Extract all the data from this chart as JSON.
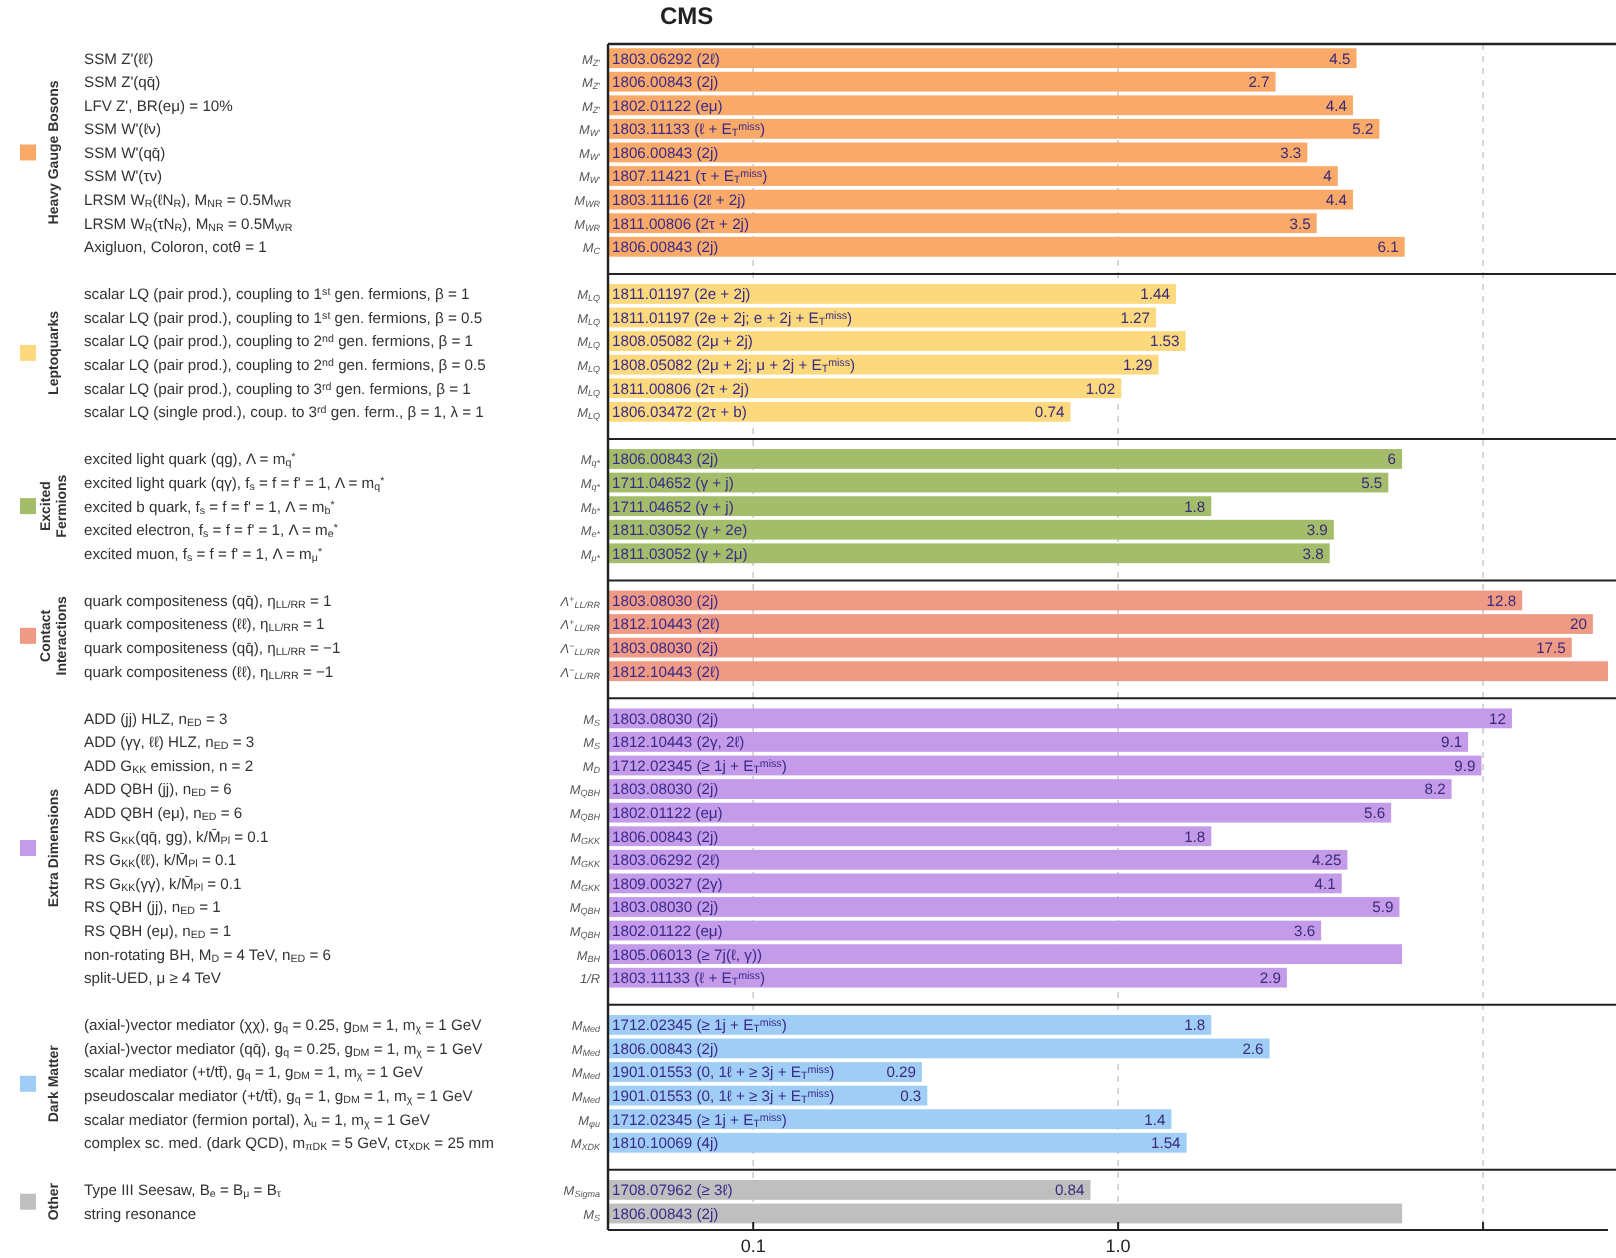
{
  "chart_data": {
    "type": "bar",
    "orientation": "horizontal",
    "title": "CMS",
    "log": "x",
    "grid": "x",
    "legend": "left",
    "xlim": [
      0.04,
      22
    ],
    "xticks": [
      0.1,
      {
        "value": 1,
        "label": "1.0"
      },
      {
        "value": 10,
        "label": null
      }
    ],
    "categories": [
      "SSM Z'(ℓℓ)",
      "SSM Z'(qq̄)",
      "LFV Z', BR(eμ) = 10%",
      "SSM W'(ℓν)",
      "SSM W'(qq̄)",
      "SSM W'(τν)",
      "LRSM W$_{R}$(ℓN$_{R}$), M$_{NR}$ = 0.5M$_{WR}$",
      "LRSM W$_{R}$(τN$_{R}$), M$_{NR}$ = 0.5M$_{WR}$",
      "Axigluon, Coloron, cotθ = 1",
      "scalar LQ (pair prod.), coupling to 1$^{st}$ gen. fermions, β = 1",
      "scalar LQ (pair prod.), coupling to 1$^{st}$ gen. fermions, β = 0.5",
      "scalar LQ (pair prod.), coupling to 2$^{nd}$ gen. fermions, β = 1",
      "scalar LQ (pair prod.), coupling to 2$^{nd}$ gen. fermions, β = 0.5",
      "scalar LQ (pair prod.), coupling to 3$^{rd}$ gen. fermions, β = 1",
      "scalar LQ (single prod.), coup. to 3$^{rd}$ gen. ferm., β = 1, λ = 1",
      "excited light quark (qg), Λ = m$_{q}$$^{*}$",
      "excited light quark (qγ), f$_{s}$ = f = f' = 1, Λ = m$_{q}$$^{*}$",
      "excited b quark, f$_{s}$ = f = f' = 1, Λ = m$_{b}$$^{*}$",
      "excited electron, f$_{s}$ = f = f' = 1, Λ = m$_{e}$$^{*}$",
      "excited muon, f$_{s}$ = f = f' = 1, Λ = m$_{μ}$$^{*}$",
      "quark compositeness (qq̄), η$_{LL/RR}$ = 1",
      "quark compositeness (ℓℓ), η$_{LL/RR}$ = 1",
      "quark compositeness (qq̄), η$_{LL/RR}$ = −1",
      "quark compositeness (ℓℓ), η$_{LL/RR}$ = −1",
      "ADD (jj) HLZ, n$_{ED}$ = 3",
      "ADD (γγ, ℓℓ) HLZ, n$_{ED}$ = 3",
      "ADD G$_{KK}$ emission, n = 2",
      "ADD QBH (jj), n$_{ED}$ = 6",
      "ADD QBH (eμ), n$_{ED}$ = 6",
      "RS G$_{KK}$(qq̄, gg), k/M̄$_{Pl}$ = 0.1",
      "RS G$_{KK}$(ℓℓ), k/M̄$_{Pl}$ = 0.1",
      "RS G$_{KK}$(γγ), k/M̄$_{Pl}$ = 0.1",
      "RS QBH (jj), n$_{ED}$ = 1",
      "RS QBH (eμ), n$_{ED}$ = 1",
      "non-rotating BH, M$_{D}$ = 4 TeV, n$_{ED}$ = 6",
      "split-UED, μ ≥ 4 TeV",
      "(axial-)vector mediator (χχ), g$_{q}$ = 0.25, g$_{DM}$ = 1, m$_{χ}$ = 1 GeV",
      "(axial-)vector mediator (qq̄), g$_{q}$ = 0.25, g$_{DM}$ = 1, m$_{χ}$ = 1 GeV",
      "scalar mediator (+t/tt̄), g$_{q}$ = 1, g$_{DM}$ = 1, m$_{χ}$ = 1 GeV",
      "pseudoscalar mediator (+t/tt̄), g$_{q}$ = 1, g$_{DM}$ = 1, m$_{χ}$ = 1 GeV",
      "scalar mediator (fermion portal), λ$_{u}$ = 1, m$_{χ}$ = 1 GeV",
      "complex sc. med. (dark QCD), m$_{πDK}$ = 5 GeV, cτ$_{XDK}$ = 25 mm",
      "Type III Seesaw, B$_{e}$ = B$_{μ}$ = B$_{τ}$",
      "string resonance"
    ],
    "y2_categories": [
      "M$_{Z'}$",
      "M$_{Z'}$",
      "M$_{Z'}$",
      "M$_{W'}$",
      "M$_{W'}$",
      "M$_{W'}$",
      "M$_{WR}$",
      "M$_{WR}$",
      "M$_{C}$",
      "M$_{LQ}$",
      "M$_{LQ}$",
      "M$_{LQ}$",
      "M$_{LQ}$",
      "M$_{LQ}$",
      "M$_{LQ}$",
      "M$_{q*}$",
      "M$_{q*}$",
      "M$_{b*}$",
      "M$_{e*}$",
      "M$_{μ*}$",
      "Λ$^{+}$$_{LL/RR}$",
      "Λ$^{+}$$_{LL/RR}$",
      "Λ$^{−}$$_{LL/RR}$",
      "Λ$^{−}$$_{LL/RR}$",
      "M$_{S}$",
      "M$_{S}$",
      "M$_{D}$",
      "M$_{QBH}$",
      "M$_{QBH}$",
      "M$_{GKK}$",
      "M$_{GKK}$",
      "M$_{GKK}$",
      "M$_{QBH}$",
      "M$_{QBH}$",
      "M$_{BH}$",
      "1/R",
      "M$_{Med}$",
      "M$_{Med}$",
      "M$_{Med}$",
      "M$_{Med}$",
      "M$_{φu}$",
      "M$_{XDK}$",
      "M$_{Sigma}$",
      "M$_{S}$"
    ],
    "annotations": [
      "1803.06292 (2ℓ)",
      "1806.00843 (2j)",
      "1802.01122 (eμ)",
      "1803.11133 (ℓ + E$_{T}$$^{miss}$)",
      "1806.00843 (2j)",
      "1807.11421 (τ + E$_{T}$$^{miss}$)",
      "1803.11116 (2ℓ + 2j)",
      "1811.00806 (2τ + 2j)",
      "1806.00843 (2j)",
      "1811.01197 (2e + 2j)",
      "1811.01197 (2e + 2j; e + 2j + E$_{T}$$^{miss}$)",
      "1808.05082 (2μ + 2j)",
      "1808.05082 (2μ + 2j; μ + 2j + E$_{T}$$^{miss}$)",
      "1811.00806 (2τ + 2j)",
      "1806.03472 (2τ + b)",
      "1806.00843 (2j)",
      "1711.04652 (γ + j)",
      "1711.04652 (γ + j)",
      "1811.03052 (γ + 2e)",
      "1811.03052 (γ + 2μ)",
      "1803.08030 (2j)",
      "1812.10443 (2ℓ)",
      "1803.08030 (2j)",
      "1812.10443 (2ℓ)",
      "1803.08030 (2j)",
      "1812.10443 (2γ, 2ℓ)",
      "1712.02345 (≥ 1j + E$_{T}$$^{miss}$)",
      "1803.08030 (2j)",
      "1802.01122 (eμ)",
      "1806.00843 (2j)",
      "1803.06292 (2ℓ)",
      "1809.00327 (2γ)",
      "1803.08030 (2j)",
      "1802.01122 (eμ)",
      "1805.06013 (≥ 7j(ℓ, γ))",
      "1803.11133 (ℓ + E$_{T}$$^{miss}$)",
      "1712.02345 (≥ 1j + E$_{T}$$^{miss}$)",
      "1806.00843 (2j)",
      "1901.01553 (0, 1ℓ + ≥ 3j + E$_{T}$$^{miss}$)",
      "1901.01553 (0, 1ℓ + ≥ 3j + E$_{T}$$^{miss}$)",
      "1712.02345 (≥ 1j + E$_{T}$$^{miss}$)",
      "1810.10069 (4j)",
      "1708.07962 (≥ 3ℓ)",
      "1806.00843 (2j)"
    ],
    "series": [
      {
        "name": "Heavy Gauge Bosons",
        "color": "#f9a968",
        "values": [
          4.5,
          2.7,
          4.4,
          5.2,
          3.3,
          4,
          4.4,
          3.5,
          6.1,
          null,
          null,
          null,
          null,
          null,
          null,
          null,
          null,
          null,
          null,
          null,
          null,
          null,
          null,
          null,
          null,
          null,
          null,
          null,
          null,
          null,
          null,
          null,
          null,
          null,
          null,
          null,
          null,
          null,
          null,
          null,
          null,
          null,
          null,
          null
        ],
        "value_labels": [
          "4.5",
          "2.7",
          "4.4",
          "5.2",
          "3.3",
          "4",
          "4.4",
          "3.5",
          "6.1",
          null,
          null,
          null,
          null,
          null,
          null,
          null,
          null,
          null,
          null,
          null,
          null,
          null,
          null,
          null,
          null,
          null,
          null,
          null,
          null,
          null,
          null,
          null,
          null,
          null,
          null,
          null,
          null,
          null,
          null,
          null,
          null,
          null,
          null,
          null
        ]
      },
      {
        "name": "Leptoquarks",
        "color": "#fbd97c",
        "values": [
          null,
          null,
          null,
          null,
          null,
          null,
          null,
          null,
          null,
          1.44,
          1.27,
          1.53,
          1.29,
          1.02,
          0.74,
          null,
          null,
          null,
          null,
          null,
          null,
          null,
          null,
          null,
          null,
          null,
          null,
          null,
          null,
          null,
          null,
          null,
          null,
          null,
          null,
          null,
          null,
          null,
          null,
          null,
          null,
          null,
          null,
          null
        ],
        "value_labels": [
          null,
          null,
          null,
          null,
          null,
          null,
          null,
          null,
          null,
          "1.44",
          "1.27",
          "1.53",
          "1.29",
          "1.02",
          "0.74",
          null,
          null,
          null,
          null,
          null,
          null,
          null,
          null,
          null,
          null,
          null,
          null,
          null,
          null,
          null,
          null,
          null,
          null,
          null,
          null,
          null,
          null,
          null,
          null,
          null,
          null,
          null,
          null,
          null
        ]
      },
      {
        "name": "Excited Fermions",
        "color": "#a4bd6a",
        "values": [
          null,
          null,
          null,
          null,
          null,
          null,
          null,
          null,
          null,
          null,
          null,
          null,
          null,
          null,
          null,
          6,
          5.5,
          1.8,
          3.9,
          3.8,
          null,
          null,
          null,
          null,
          null,
          null,
          null,
          null,
          null,
          null,
          null,
          null,
          null,
          null,
          null,
          null,
          null,
          null,
          null,
          null,
          null,
          null,
          null,
          null
        ],
        "value_labels": [
          null,
          null,
          null,
          null,
          null,
          null,
          null,
          null,
          null,
          null,
          null,
          null,
          null,
          null,
          null,
          "6",
          "5.5",
          "1.8",
          "3.9",
          "3.8",
          null,
          null,
          null,
          null,
          null,
          null,
          null,
          null,
          null,
          null,
          null,
          null,
          null,
          null,
          null,
          null,
          null,
          null,
          null,
          null,
          null,
          null,
          null,
          null
        ]
      },
      {
        "name": "Contact Interactions",
        "color": "#ef9a85",
        "values": [
          null,
          null,
          null,
          null,
          null,
          null,
          null,
          null,
          null,
          null,
          null,
          null,
          null,
          null,
          null,
          null,
          null,
          null,
          null,
          null,
          12.8,
          20,
          17.5,
          22,
          null,
          null,
          null,
          null,
          null,
          null,
          null,
          null,
          null,
          null,
          null,
          null,
          null,
          null,
          null,
          null,
          null,
          null,
          null,
          null
        ],
        "value_labels": [
          null,
          null,
          null,
          null,
          null,
          null,
          null,
          null,
          null,
          null,
          null,
          null,
          null,
          null,
          null,
          null,
          null,
          null,
          null,
          null,
          "12.8",
          "20",
          "17.5",
          null,
          null,
          null,
          null,
          null,
          null,
          null,
          null,
          null,
          null,
          null,
          null,
          null,
          null,
          null,
          null,
          null,
          null,
          null,
          null,
          null
        ]
      },
      {
        "name": "Extra Dimensions",
        "color": "#c49be9",
        "values": [
          null,
          null,
          null,
          null,
          null,
          null,
          null,
          null,
          null,
          null,
          null,
          null,
          null,
          null,
          null,
          null,
          null,
          null,
          null,
          null,
          null,
          null,
          null,
          null,
          12,
          9.1,
          9.9,
          8.2,
          5.6,
          1.8,
          4.25,
          4.1,
          5.9,
          3.6,
          6,
          2.9,
          null,
          null,
          null,
          null,
          null,
          null,
          null,
          null
        ],
        "value_labels": [
          null,
          null,
          null,
          null,
          null,
          null,
          null,
          null,
          null,
          null,
          null,
          null,
          null,
          null,
          null,
          null,
          null,
          null,
          null,
          null,
          null,
          null,
          null,
          null,
          "12",
          "9.1",
          "9.9",
          "8.2",
          "5.6",
          "1.8",
          "4.25",
          "4.1",
          "5.9",
          "3.6",
          null,
          "2.9",
          null,
          null,
          null,
          null,
          null,
          null,
          null,
          null
        ]
      },
      {
        "name": "Dark Matter",
        "color": "#a0cdf6",
        "values": [
          null,
          null,
          null,
          null,
          null,
          null,
          null,
          null,
          null,
          null,
          null,
          null,
          null,
          null,
          null,
          null,
          null,
          null,
          null,
          null,
          null,
          null,
          null,
          null,
          null,
          null,
          null,
          null,
          null,
          null,
          null,
          null,
          null,
          null,
          null,
          null,
          1.8,
          2.6,
          0.29,
          0.3,
          1.4,
          1.54,
          null,
          null
        ],
        "value_labels": [
          null,
          null,
          null,
          null,
          null,
          null,
          null,
          null,
          null,
          null,
          null,
          null,
          null,
          null,
          null,
          null,
          null,
          null,
          null,
          null,
          null,
          null,
          null,
          null,
          null,
          null,
          null,
          null,
          null,
          null,
          null,
          null,
          null,
          null,
          null,
          null,
          "1.8",
          "2.6",
          "0.29",
          "0.3",
          "1.4",
          "1.54",
          null,
          null
        ]
      },
      {
        "name": "Other",
        "color": "#bfbfbf",
        "values": [
          null,
          null,
          null,
          null,
          null,
          null,
          null,
          null,
          null,
          null,
          null,
          null,
          null,
          null,
          null,
          null,
          null,
          null,
          null,
          null,
          null,
          null,
          null,
          null,
          null,
          null,
          null,
          null,
          null,
          null,
          null,
          null,
          null,
          null,
          null,
          null,
          null,
          null,
          null,
          null,
          null,
          null,
          0.84,
          6
        ],
        "value_labels": [
          null,
          null,
          null,
          null,
          null,
          null,
          null,
          null,
          null,
          null,
          null,
          null,
          null,
          null,
          null,
          null,
          null,
          null,
          null,
          null,
          null,
          null,
          null,
          null,
          null,
          null,
          null,
          null,
          null,
          null,
          null,
          null,
          null,
          null,
          null,
          null,
          null,
          null,
          null,
          null,
          null,
          null,
          "0.84",
          null
        ]
      }
    ]
  }
}
